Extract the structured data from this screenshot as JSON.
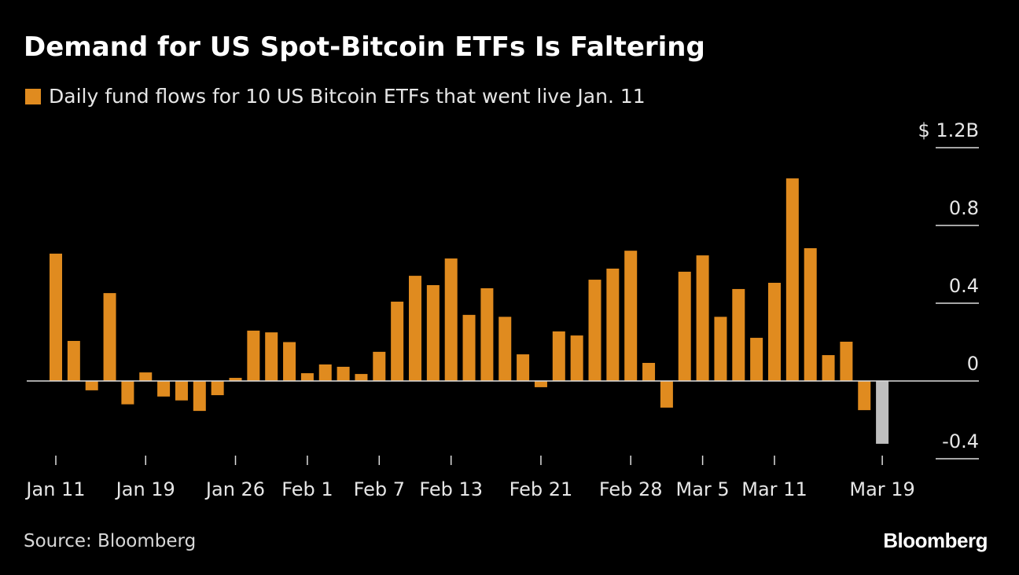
{
  "title": "Demand for US Spot-Bitcoin ETFs Is Faltering",
  "source": "Source: Bloomberg",
  "logo": "Bloomberg",
  "colors": {
    "bar": "#e08b1f",
    "last_bar": "#bfbfbf",
    "background": "#000000"
  },
  "chart_data": {
    "type": "bar",
    "title": "Demand for US Spot-Bitcoin ETFs Is Faltering",
    "legend": "Daily fund flows for 10 US Bitcoin ETFs that went live Jan. 11",
    "legend_placement": "top-left",
    "ylabel": "",
    "y_unit": "$ billions",
    "ylim": [
      -0.4,
      1.2
    ],
    "yticks": [
      -0.4,
      0,
      0.4,
      0.8,
      1.2
    ],
    "ytick_labels": [
      "-0.4",
      "0",
      "0.4",
      "0.8",
      "$ 1.2B"
    ],
    "xtick_labels": [
      "Jan 11",
      "Jan 19",
      "Jan 26",
      "Feb 1",
      "Feb 7",
      "Feb 13",
      "Feb 21",
      "Feb 28",
      "Mar 5",
      "Mar 11",
      "Mar 19"
    ],
    "grid": false,
    "categories": [
      "Jan 11",
      "Jan 12",
      "Jan 16",
      "Jan 17",
      "Jan 18",
      "Jan 19",
      "Jan 22",
      "Jan 23",
      "Jan 24",
      "Jan 25",
      "Jan 26",
      "Jan 29",
      "Jan 30",
      "Jan 31",
      "Feb 1",
      "Feb 2",
      "Feb 5",
      "Feb 6",
      "Feb 7",
      "Feb 8",
      "Feb 9",
      "Feb 12",
      "Feb 13",
      "Feb 14",
      "Feb 15",
      "Feb 16",
      "Feb 20",
      "Feb 21",
      "Feb 22",
      "Feb 23",
      "Feb 26",
      "Feb 27",
      "Feb 28",
      "Feb 29",
      "Mar 1",
      "Mar 4",
      "Mar 5",
      "Mar 6",
      "Mar 7",
      "Mar 8",
      "Mar 11",
      "Mar 12",
      "Mar 13",
      "Mar 14",
      "Mar 15",
      "Mar 18",
      "Mar 19"
    ],
    "values": [
      0.655,
      0.206,
      -0.048,
      0.452,
      -0.12,
      0.044,
      -0.08,
      -0.1,
      -0.154,
      -0.073,
      0.016,
      0.259,
      0.25,
      0.2,
      0.04,
      0.085,
      0.073,
      0.036,
      0.15,
      0.408,
      0.541,
      0.493,
      0.63,
      0.34,
      0.477,
      0.33,
      0.137,
      -0.032,
      0.255,
      0.234,
      0.521,
      0.578,
      0.67,
      0.093,
      -0.137,
      0.562,
      0.646,
      0.33,
      0.473,
      0.222,
      0.505,
      1.042,
      0.683,
      0.133,
      0.202,
      -0.15,
      -0.323
    ]
  }
}
